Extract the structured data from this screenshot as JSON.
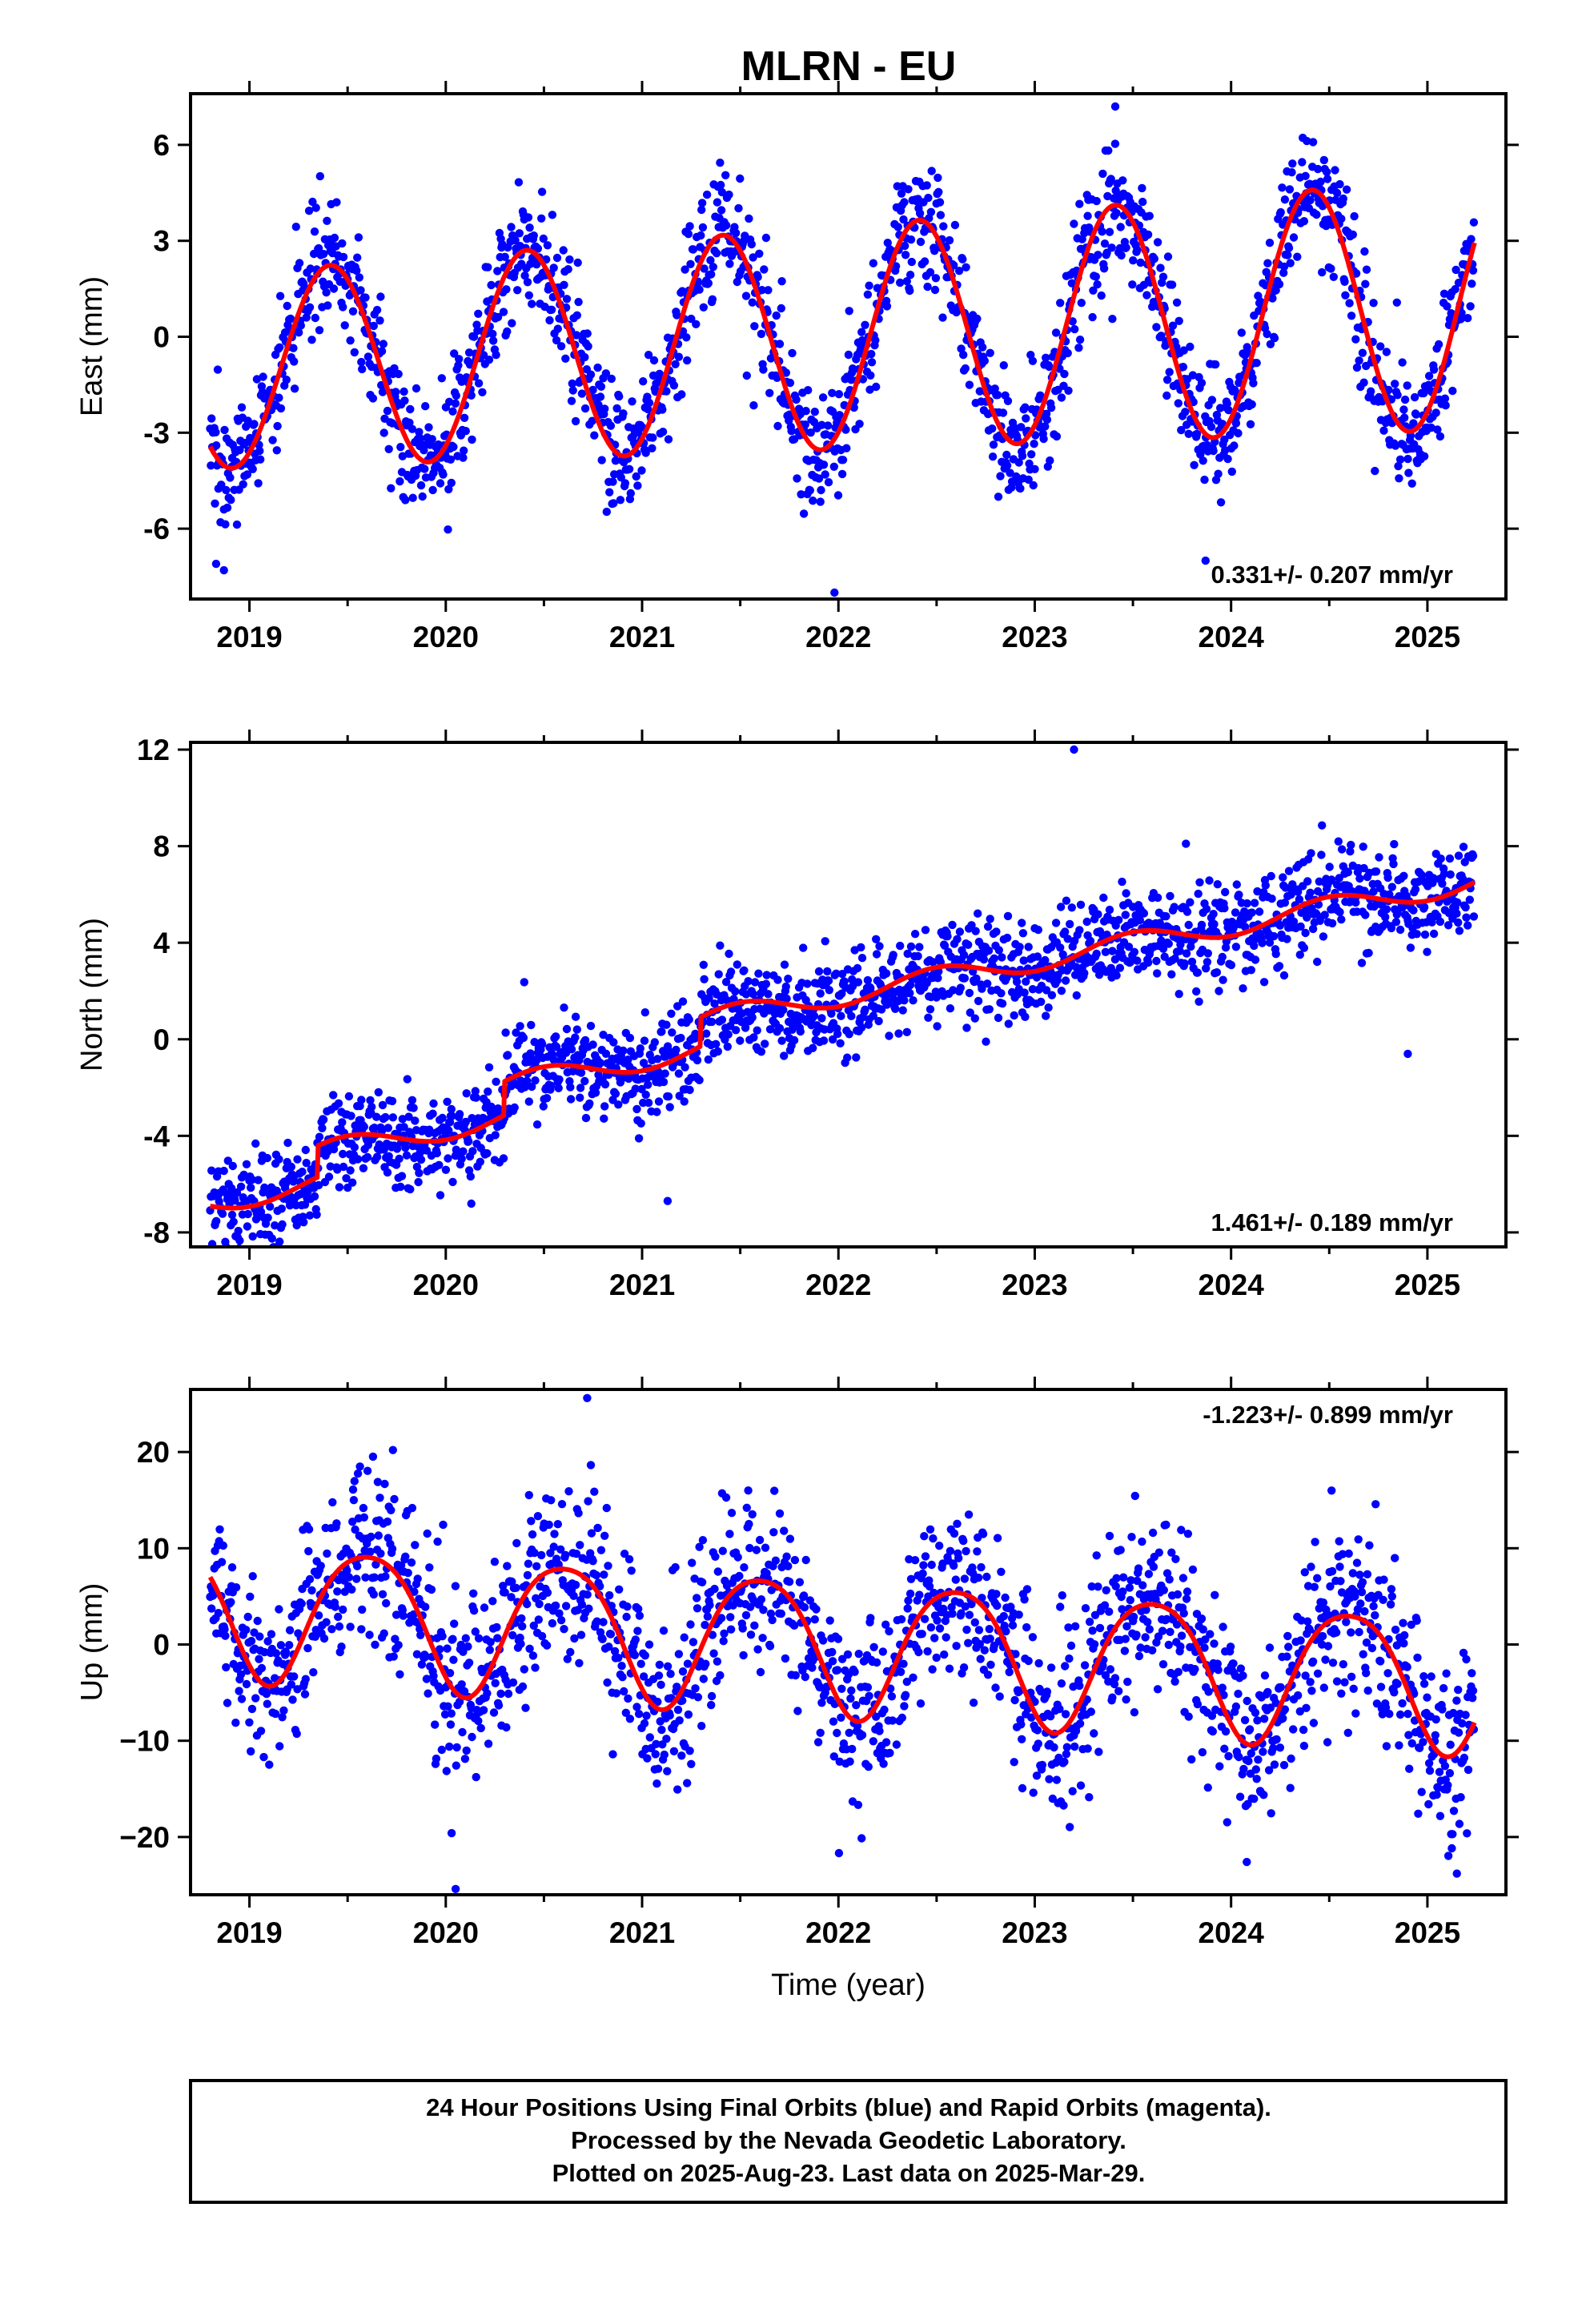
{
  "title": "MLRN - EU",
  "footer": {
    "lines": [
      "24 Hour Positions Using Final Orbits (blue) and Rapid Orbits (magenta).",
      "Processed by the Nevada Geodetic Laboratory.",
      "Plotted on 2025-Aug-23. Last data on 2025-Mar-29."
    ]
  },
  "colors": {
    "points": "#0000ff",
    "model": "#ff0000",
    "axes": "#000000"
  },
  "chart_data": [
    {
      "type": "scatter",
      "name": "east",
      "ylabel": "East (mm)",
      "xlabel": "",
      "xlim": [
        2018.7,
        2025.4
      ],
      "ylim": [
        -8.2,
        7.6
      ],
      "x_ticks": [
        2019,
        2020,
        2021,
        2022,
        2023,
        2024,
        2025
      ],
      "x_tick_labels": [
        "2019",
        "2020",
        "2021",
        "2022",
        "2023",
        "2024",
        "2025"
      ],
      "y_ticks": [
        -6,
        -3,
        0,
        3,
        6
      ],
      "y_tick_labels": [
        "-6",
        "-3",
        "0",
        "3",
        "6"
      ],
      "rate_label": "0.331+/- 0.207 mm/yr",
      "rate_position": "bottom-right",
      "model": {
        "mean": 0,
        "trend_mm_per_yr": 0.331,
        "ref_year": 2022.1,
        "annual_amp": 3.5,
        "annual_amp_growth": 0.04,
        "annual_peak": 2024.41,
        "semi_amp": 0,
        "semi_peak": 0,
        "noise_sd": 1.0
      },
      "points_start": 2018.8,
      "points_end": 2025.24,
      "points_step": 0.0035,
      "outliers": [
        [
          2018.83,
          -7.1
        ],
        [
          2018.87,
          -7.3
        ],
        [
          2021.98,
          -8.0
        ],
        [
          2023.87,
          -7.0
        ],
        [
          2023.41,
          7.2
        ]
      ]
    },
    {
      "type": "scatter",
      "name": "north",
      "ylabel": "North (mm)",
      "xlabel": "",
      "xlim": [
        2018.7,
        2025.4
      ],
      "ylim": [
        -8.6,
        12.3
      ],
      "x_ticks": [
        2019,
        2020,
        2021,
        2022,
        2023,
        2024,
        2025
      ],
      "x_tick_labels": [
        "2019",
        "2020",
        "2021",
        "2022",
        "2023",
        "2024",
        "2025"
      ],
      "y_ticks": [
        -8,
        -4,
        0,
        4,
        8,
        12
      ],
      "y_tick_labels": [
        "-8",
        "-4",
        "0",
        "4",
        "8",
        "12"
      ],
      "rate_label": "1.461+/- 0.189 mm/yr",
      "rate_position": "bottom-right",
      "model": {
        "mean": 0,
        "trend_mm_per_yr": 1.461,
        "ref_year": 2022.1,
        "annual_amp": 0.45,
        "annual_amp_growth": 0,
        "annual_peak": 2022.5,
        "semi_amp": 0,
        "semi_peak": 0,
        "noise_sd": 1.0
      },
      "steps": [
        [
          2019.35,
          1.3
        ],
        [
          2020.3,
          1.4
        ],
        [
          2021.3,
          1.2
        ]
      ],
      "points_start": 2018.8,
      "points_end": 2025.24,
      "points_step": 0.0035,
      "outliers": [
        [
          2023.2,
          12.0
        ],
        [
          2023.77,
          8.1
        ],
        [
          2024.9,
          -0.6
        ],
        [
          2021.13,
          -6.7
        ],
        [
          2019.1,
          -8.1
        ]
      ]
    },
    {
      "type": "scatter",
      "name": "up",
      "ylabel": "Up (mm)",
      "xlabel": "Time (year)",
      "xlim": [
        2018.7,
        2025.4
      ],
      "ylim": [
        -26,
        26.5
      ],
      "x_ticks": [
        2019,
        2020,
        2021,
        2022,
        2023,
        2024,
        2025
      ],
      "x_tick_labels": [
        "2019",
        "2020",
        "2021",
        "2022",
        "2023",
        "2024",
        "2025"
      ],
      "y_ticks": [
        -20,
        -10,
        0,
        10,
        20
      ],
      "y_tick_labels": [
        "−20",
        "−10",
        "0",
        "10",
        "20"
      ],
      "rate_label": "-1.223+/- 0.899 mm/yr",
      "rate_position": "top-right",
      "model": {
        "mean": 0,
        "trend_mm_per_yr": -1.223,
        "ref_year": 2022.1,
        "annual_amp": 7.0,
        "annual_amp_growth": 0,
        "annual_peak": 2022.6,
        "semi_amp": 1.0,
        "semi_peak": 2022.85,
        "noise_sd": 4.6
      },
      "points_start": 2018.8,
      "points_end": 2025.24,
      "points_step": 0.0035,
      "outliers": [
        [
          2020.05,
          -25.4
        ],
        [
          2020.72,
          25.6
        ],
        [
          2020.03,
          -19.6
        ],
        [
          2024.08,
          -22.6
        ],
        [
          2025.15,
          -23.8
        ]
      ]
    }
  ]
}
